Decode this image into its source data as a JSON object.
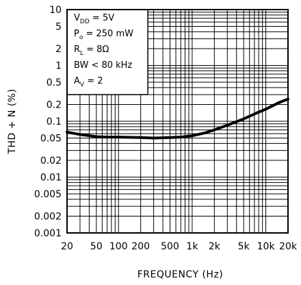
{
  "chart_data": {
    "type": "line",
    "title": "",
    "xlabel": "FREQUENCY (Hz)",
    "ylabel": "THD + N (%)",
    "x_scale": "log",
    "y_scale": "log",
    "xlim": [
      20,
      20000
    ],
    "ylim": [
      0.001,
      10
    ],
    "grid": true,
    "x_ticks": [
      20,
      50,
      100,
      200,
      500,
      1000,
      2000,
      5000,
      10000,
      20000
    ],
    "x_tick_labels": [
      "20",
      "50",
      "100",
      "200",
      "500",
      "1k",
      "2k",
      "5k",
      "10k",
      "20k"
    ],
    "y_ticks": [
      10,
      5,
      2,
      1,
      0.5,
      0.2,
      0.1,
      0.05,
      0.02,
      0.01,
      0.005,
      0.002,
      0.001
    ],
    "y_tick_labels": [
      "10",
      "5",
      "2",
      "1",
      "0.5",
      "0.2",
      "0.1",
      "0.05",
      "0.02",
      "0.01",
      "0.005",
      "0.002",
      "0.001"
    ],
    "conditions": [
      {
        "main": "V",
        "sub": "DD",
        "rest": " = 5V"
      },
      {
        "main": "P",
        "sub": "o",
        "rest": " = 250 mW"
      },
      {
        "main": "R",
        "sub": "L",
        "rest": " = 8Ω"
      },
      {
        "main": "BW < 80 kHz",
        "sub": "",
        "rest": ""
      },
      {
        "main": "A",
        "sub": "V",
        "rest": " = 2"
      }
    ],
    "series": [
      {
        "x": [
          20,
          30,
          50,
          70,
          100,
          200,
          300,
          500,
          700,
          1000,
          1500,
          2000,
          3000,
          5000,
          7000,
          10000,
          15000,
          20000
        ],
        "y": [
          0.064,
          0.058,
          0.053,
          0.052,
          0.052,
          0.051,
          0.05,
          0.051,
          0.052,
          0.055,
          0.062,
          0.07,
          0.085,
          0.11,
          0.135,
          0.165,
          0.215,
          0.25
        ]
      }
    ]
  }
}
